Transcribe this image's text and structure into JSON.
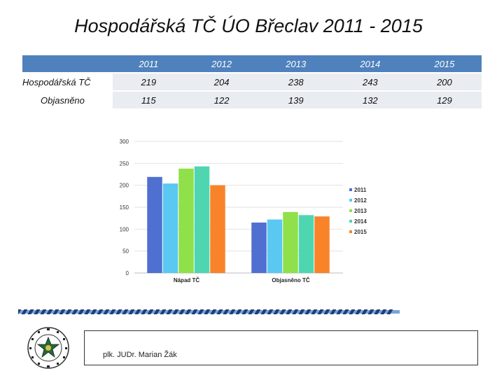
{
  "title": "Hospodářská TČ ÚO Břeclav 2011 - 2015",
  "table": {
    "header": [
      "",
      "2011",
      "2012",
      "2013",
      "2014",
      "2015"
    ],
    "rows": [
      {
        "label": "Hospodářská TČ",
        "values": [
          "219",
          "204",
          "238",
          "243",
          "200"
        ]
      },
      {
        "label": "Objasněno",
        "values": [
          "115",
          "122",
          "139",
          "132",
          "129"
        ]
      }
    ]
  },
  "chart_data": {
    "type": "bar",
    "categories": [
      "Nápad TČ",
      "Objasněno TČ"
    ],
    "series": [
      {
        "name": "2011",
        "values": [
          219,
          115
        ],
        "color": "#4f6fd1"
      },
      {
        "name": "2012",
        "values": [
          204,
          122
        ],
        "color": "#5ac8f0"
      },
      {
        "name": "2013",
        "values": [
          238,
          139
        ],
        "color": "#8fe04a"
      },
      {
        "name": "2014",
        "values": [
          243,
          132
        ],
        "color": "#4fd6b0"
      },
      {
        "name": "2015",
        "values": [
          200,
          129
        ],
        "color": "#f98329"
      }
    ],
    "yticks": [
      0,
      50,
      100,
      150,
      200,
      250,
      300
    ],
    "ylim": [
      0,
      300
    ],
    "legend": "right",
    "grid": true
  },
  "footer": {
    "author": "plk. JUDr. Marian Žák"
  },
  "colors": {
    "header_bg": "#4f81bd",
    "cell_bg": "#e9ecf1",
    "stripe_dark": "#1f3f7a",
    "stripe_light": "#7aa3d6"
  }
}
